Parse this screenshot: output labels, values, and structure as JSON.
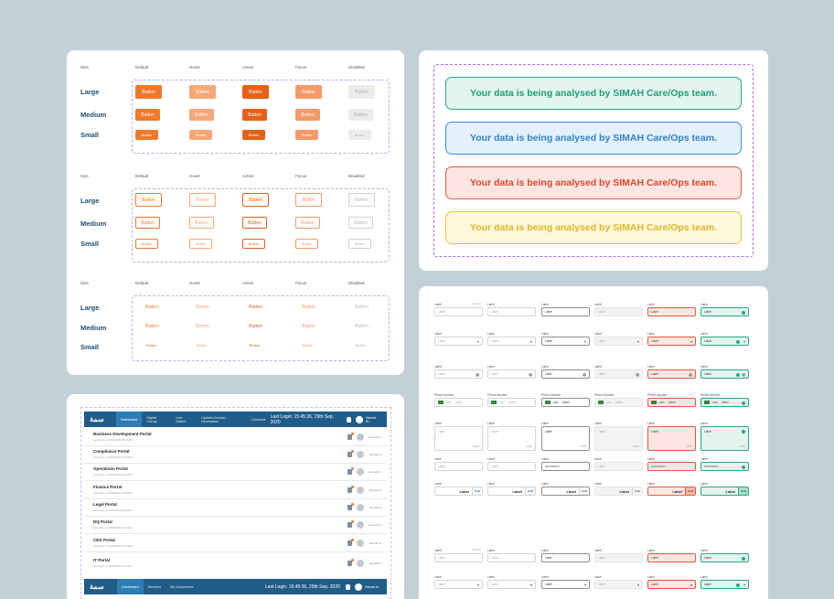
{
  "buttons": {
    "headers": [
      "Size",
      "Default",
      "Hover",
      "Active",
      "Focus",
      "Disabled"
    ],
    "sizes": [
      "Large",
      "Medium",
      "Small"
    ],
    "label": "Button"
  },
  "alerts": {
    "message": "Your data is being analysed by SIMAH Care/Ops team.",
    "variants": [
      "success",
      "info",
      "error",
      "warning"
    ]
  },
  "portal": {
    "logo": "سمة",
    "tabs": [
      "Dashboard",
      "Digital Library",
      "Live Status",
      "Update Contact Information",
      "Contracts"
    ],
    "last_login": "Last Login: 15:45:36, 29th Sep, 2020",
    "user_name": "Hamad Al...",
    "rows": [
      {
        "title": "Business Development Portal",
        "subtitle": "Last login on 15/06/2021 06:44AM"
      },
      {
        "title": "Compliance Portal",
        "subtitle": "Last login on 15/06/2021 06:44AM"
      },
      {
        "title": "Operations Portal",
        "subtitle": "Last login on 15/06/2021 06:44AM"
      },
      {
        "title": "Finance Portal",
        "subtitle": "Last login on 15/06/2021 06:44AM"
      },
      {
        "title": "Legal Portal",
        "subtitle": "Last login on 15/06/2021 06:44AM"
      },
      {
        "title": "DQ Portal",
        "subtitle": "Last login on 15/06/2021 06:44AM"
      },
      {
        "title": "CEG Portal",
        "subtitle": "Last login on 15/06/2021 06:44AM"
      },
      {
        "title": "IT Portal",
        "subtitle": "Last login on 15/06/2021 06:44AM"
      }
    ],
    "bottom_tabs": [
      "Dashboard",
      "Services",
      "My Documents"
    ],
    "bottom_last_login": "Last Login: 15:45:36, 29th Sep, 2020",
    "bottom_user_name": "Hamad Al..."
  },
  "form": {
    "label": "Label",
    "phone_label": "Phone Number",
    "helper": "Optional",
    "placeholder": "Label",
    "value": "Label",
    "phone_code": "+966",
    "password_mask": "••••••••••••••",
    "currency": "SAR",
    "char_count": "0/100"
  },
  "colors": {
    "primary_orange": "#f0792b",
    "nav_blue": "#1f5c86",
    "success": "#2aa87d",
    "info": "#3b8fd8",
    "error": "#e25a3f",
    "warning": "#e8c43a"
  }
}
